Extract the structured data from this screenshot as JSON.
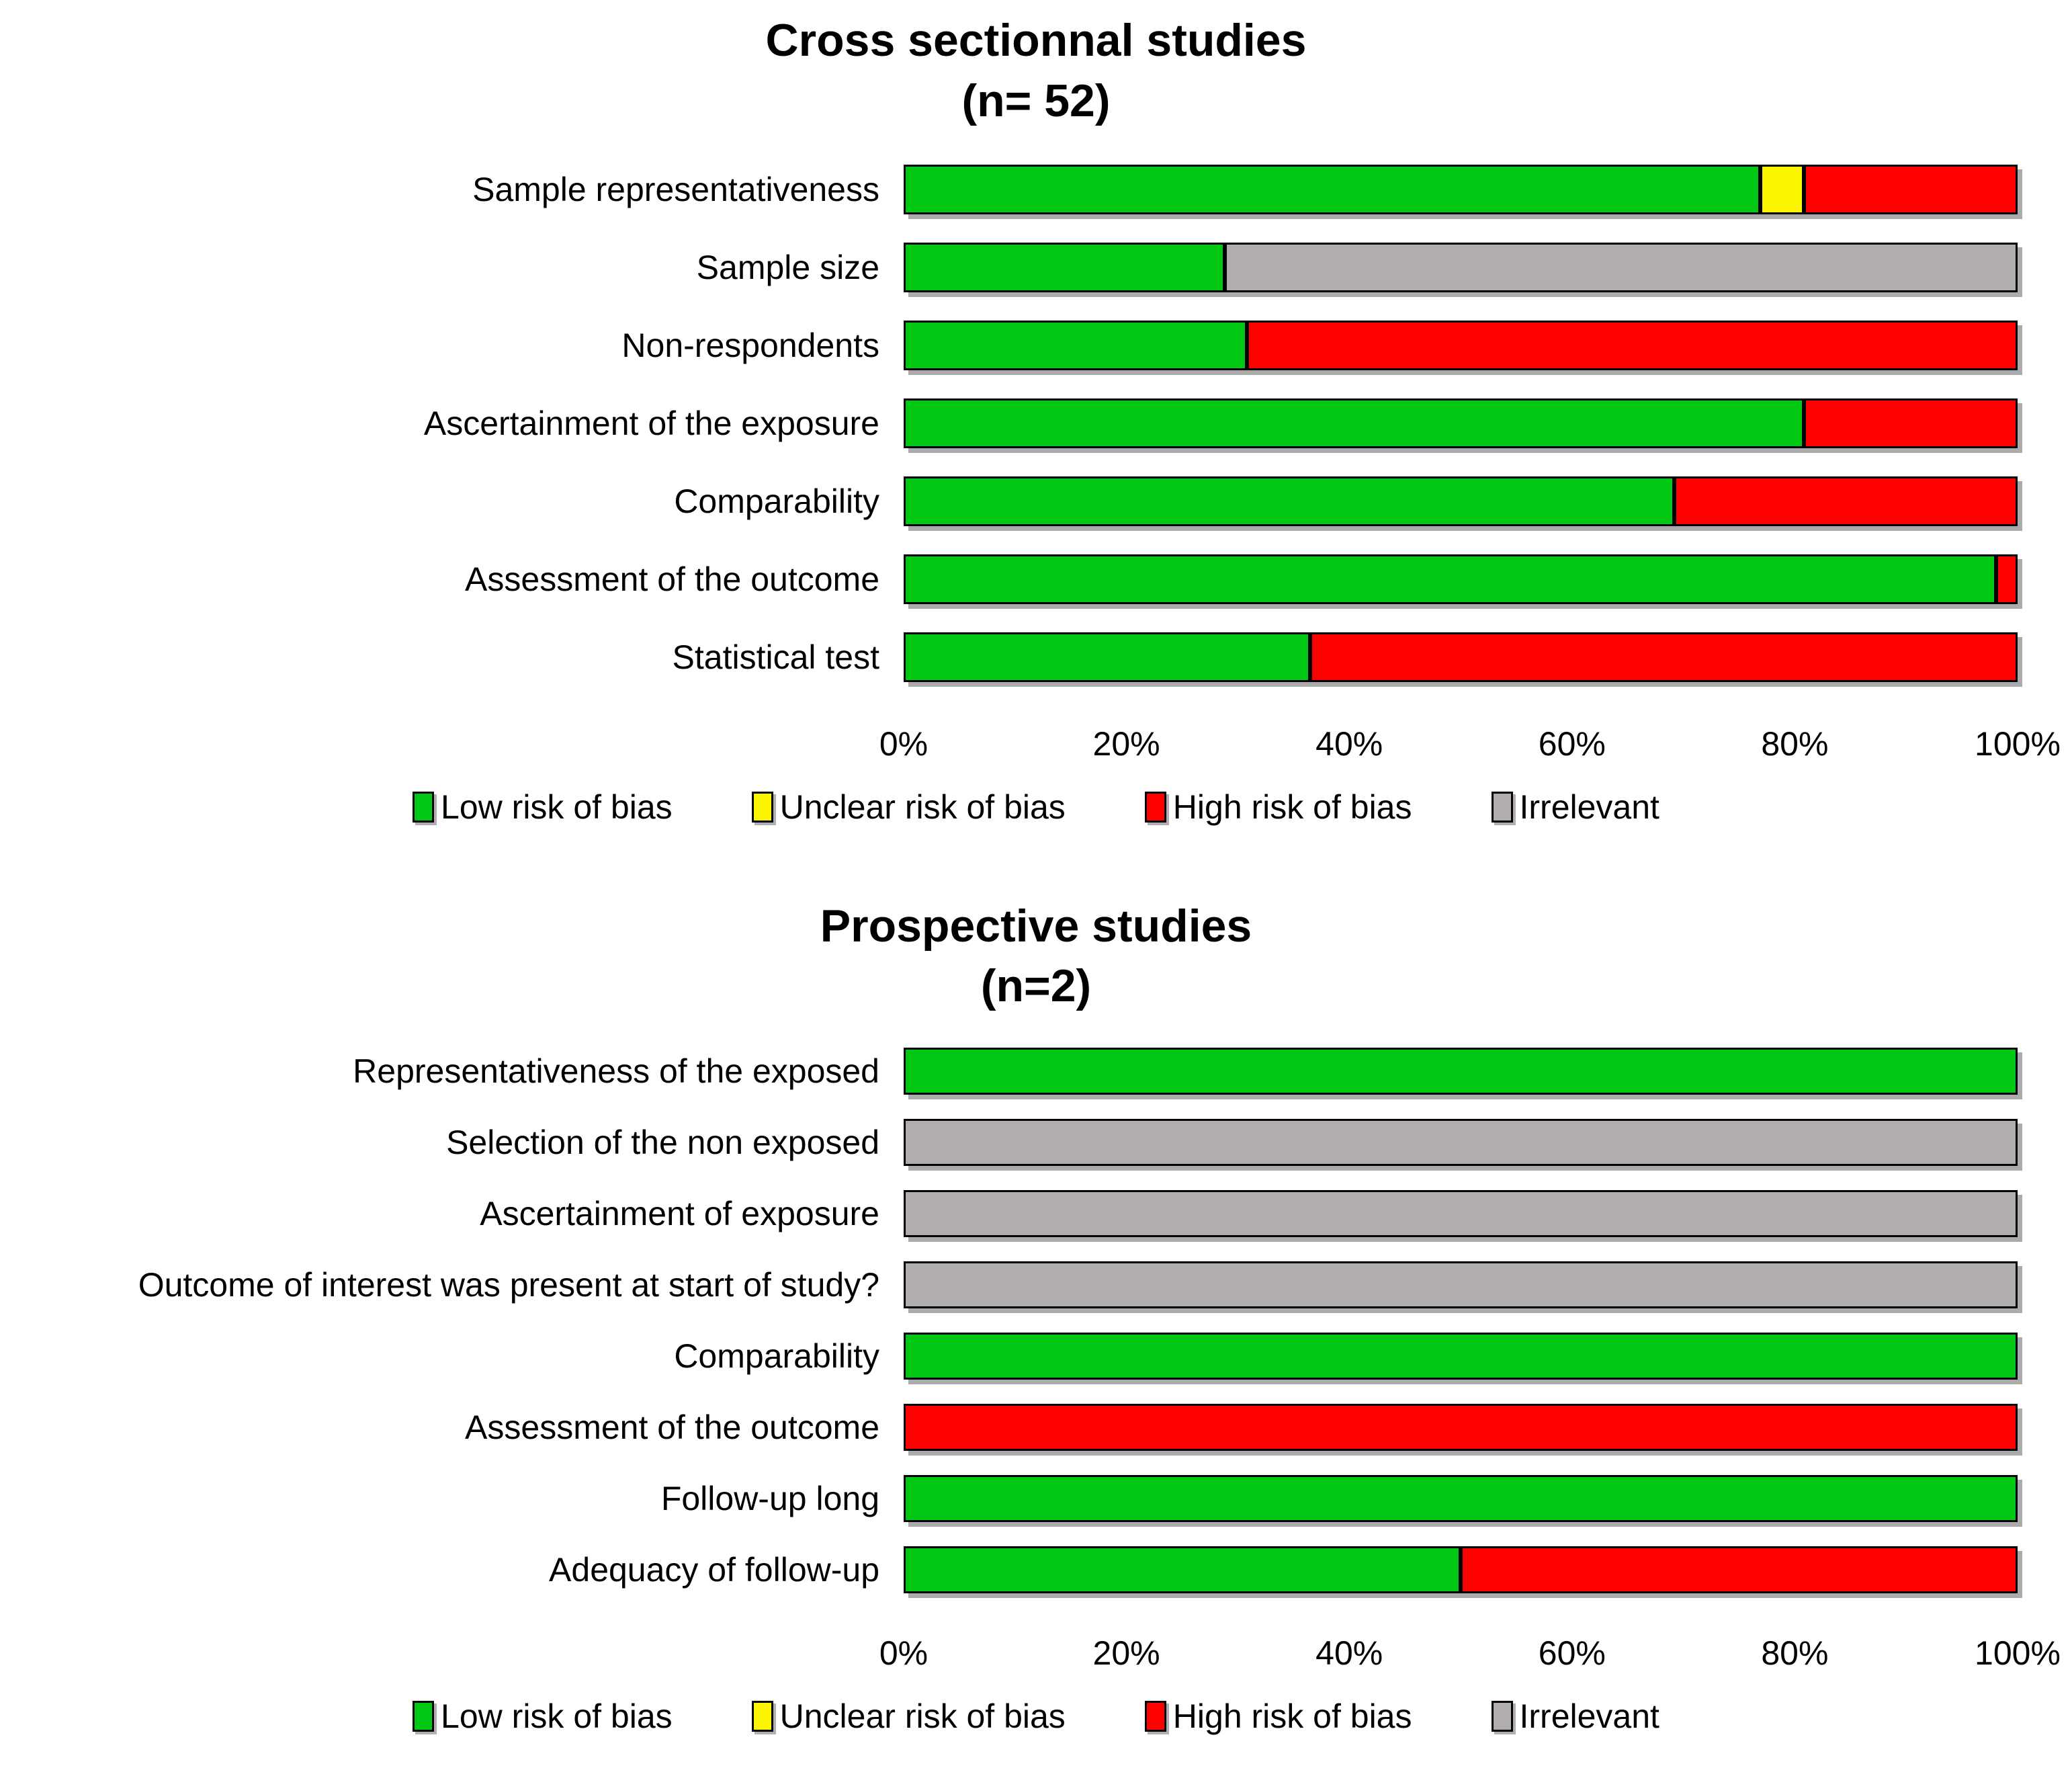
{
  "colors": {
    "low": "#00C713",
    "unclear": "#FBF500",
    "high": "#FE0000",
    "irrelevant": "#B1ADAC",
    "bar_border": "#000000",
    "bar_shadow": "#ABABAB"
  },
  "chart_data": [
    {
      "type": "bar",
      "stacked": true,
      "orientation": "horizontal",
      "title": "Cross sectionnal studies",
      "subtitle": "(n= 52)",
      "grid": false,
      "legend_position": "bottom",
      "xlim": [
        0,
        100
      ],
      "x_ticks": [
        "0%",
        "20%",
        "40%",
        "60%",
        "80%",
        "100%"
      ],
      "categories": [
        "Sample representativeness",
        "Sample size",
        "Non-respondents",
        "Ascertainment of the exposure",
        "Comparability",
        "Assessment of the outcome",
        "Statistical test"
      ],
      "series": [
        {
          "name": "Low risk of bias",
          "color": "low",
          "values": [
            76.9,
            28.8,
            30.8,
            80.8,
            69.2,
            98.1,
            36.5
          ]
        },
        {
          "name": "Unclear risk of bias",
          "color": "unclear",
          "values": [
            3.9,
            0,
            0,
            0,
            0,
            0,
            0
          ]
        },
        {
          "name": "High risk of bias",
          "color": "high",
          "values": [
            19.2,
            0,
            69.2,
            19.2,
            30.8,
            1.9,
            63.5
          ]
        },
        {
          "name": "Irrelevant",
          "color": "irrelevant",
          "values": [
            0,
            71.2,
            0,
            0,
            0,
            0,
            0
          ]
        }
      ],
      "legend": [
        {
          "label": "Low risk of bias",
          "color": "low"
        },
        {
          "label": "Unclear risk of bias",
          "color": "unclear"
        },
        {
          "label": "High risk of bias",
          "color": "high"
        },
        {
          "label": "Irrelevant",
          "color": "irrelevant"
        }
      ]
    },
    {
      "type": "bar",
      "stacked": true,
      "orientation": "horizontal",
      "title": "Prospective studies",
      "subtitle": "(n=2)",
      "grid": false,
      "legend_position": "bottom",
      "xlim": [
        0,
        100
      ],
      "x_ticks": [
        "0%",
        "20%",
        "40%",
        "60%",
        "80%",
        "100%"
      ],
      "categories": [
        "Representativeness of the exposed",
        "Selection of the non exposed",
        "Ascertainment of exposure",
        "Outcome of interest was present at start of study?",
        "Comparability",
        "Assessment of the outcome",
        "Follow-up long",
        "Adequacy of follow-up"
      ],
      "series": [
        {
          "name": "Low risk of bias",
          "color": "low",
          "values": [
            100,
            0,
            0,
            0,
            100,
            0,
            100,
            50
          ]
        },
        {
          "name": "Unclear risk of bias",
          "color": "unclear",
          "values": [
            0,
            0,
            0,
            0,
            0,
            0,
            0,
            0
          ]
        },
        {
          "name": "High risk of bias",
          "color": "high",
          "values": [
            0,
            0,
            0,
            0,
            0,
            100,
            0,
            50
          ]
        },
        {
          "name": "Irrelevant",
          "color": "irrelevant",
          "values": [
            0,
            100,
            100,
            100,
            0,
            0,
            0,
            0
          ]
        }
      ],
      "legend": [
        {
          "label": "Low risk of bias",
          "color": "low"
        },
        {
          "label": "Unclear risk of bias",
          "color": "unclear"
        },
        {
          "label": "High risk of bias",
          "color": "high"
        },
        {
          "label": "Irrelevant",
          "color": "irrelevant"
        }
      ]
    }
  ]
}
